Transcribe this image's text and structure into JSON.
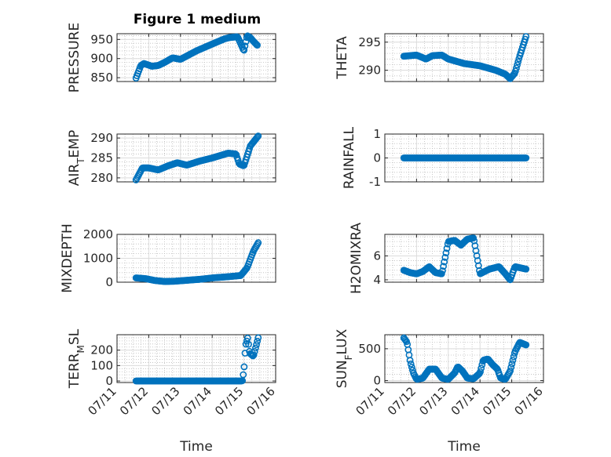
{
  "figure": {
    "title": "Figure 1 medium",
    "bg": "#ffffff",
    "marker_color": "#0072BD"
  },
  "chart_data": [
    {
      "type": "scatter",
      "marker": "circle",
      "ylabel": "PRESSURE",
      "title": "Figure 1 medium",
      "xlim": [
        "07/11",
        "07/16"
      ],
      "ylim": [
        840,
        965
      ],
      "yticks": [
        850,
        900,
        950
      ],
      "ytick_labels": [
        "850",
        "900",
        "950"
      ],
      "xticks": [],
      "xtick_labels": [],
      "xlabel": "",
      "anchors": [
        [
          11.6,
          849
        ],
        [
          11.75,
          882
        ],
        [
          11.85,
          887
        ],
        [
          12.1,
          880
        ],
        [
          12.3,
          882
        ],
        [
          12.5,
          890
        ],
        [
          12.75,
          902
        ],
        [
          13.0,
          898
        ],
        [
          13.5,
          920
        ],
        [
          14.0,
          938
        ],
        [
          14.4,
          952
        ],
        [
          14.55,
          955
        ],
        [
          14.8,
          957
        ],
        [
          14.92,
          935
        ],
        [
          15.0,
          920
        ],
        [
          15.1,
          960
        ],
        [
          15.2,
          955
        ],
        [
          15.3,
          945
        ],
        [
          15.42,
          935
        ]
      ]
    },
    {
      "type": "scatter",
      "marker": "circle",
      "ylabel": "THETA",
      "xlim": [
        "07/11",
        "07/16"
      ],
      "ylim": [
        288,
        296.5
      ],
      "yticks": [
        290,
        295
      ],
      "ytick_labels": [
        "290",
        "295"
      ],
      "xticks": [],
      "xtick_labels": [],
      "xlabel": "",
      "anchors": [
        [
          11.6,
          292.5
        ],
        [
          12.0,
          292.7
        ],
        [
          12.3,
          292.0
        ],
        [
          12.5,
          292.6
        ],
        [
          12.8,
          292.7
        ],
        [
          13.0,
          292.0
        ],
        [
          13.5,
          291.2
        ],
        [
          14.0,
          290.8
        ],
        [
          14.5,
          290.0
        ],
        [
          14.8,
          289.3
        ],
        [
          14.95,
          288.5
        ],
        [
          15.1,
          289.5
        ],
        [
          15.25,
          292.5
        ],
        [
          15.45,
          296.0
        ]
      ]
    },
    {
      "type": "scatter",
      "marker": "circle",
      "ylabel": "AIR_TEMP",
      "xlim": [
        "07/11",
        "07/16"
      ],
      "ylim": [
        279,
        291
      ],
      "yticks": [
        280,
        285,
        290
      ],
      "ytick_labels": [
        "280",
        "285",
        "290"
      ],
      "xticks": [],
      "xtick_labels": [],
      "xlabel": "",
      "anchors": [
        [
          11.6,
          279.5
        ],
        [
          11.8,
          282.5
        ],
        [
          12.0,
          282.5
        ],
        [
          12.3,
          282.0
        ],
        [
          12.6,
          283.0
        ],
        [
          12.9,
          283.8
        ],
        [
          13.2,
          283.2
        ],
        [
          13.6,
          284.2
        ],
        [
          14.0,
          285.0
        ],
        [
          14.5,
          286.2
        ],
        [
          14.75,
          286.0
        ],
        [
          14.85,
          283.5
        ],
        [
          15.0,
          283.0
        ],
        [
          15.2,
          288.0
        ],
        [
          15.45,
          290.5
        ]
      ]
    },
    {
      "type": "scatter",
      "marker": "circle",
      "ylabel": "RAINFALL",
      "xlim": [
        "07/11",
        "07/16"
      ],
      "ylim": [
        -1,
        1
      ],
      "yticks": [
        -1,
        0,
        1
      ],
      "ytick_labels": [
        "-1",
        "0",
        "1"
      ],
      "xticks": [],
      "xtick_labels": [],
      "xlabel": "",
      "anchors": [
        [
          11.6,
          0
        ],
        [
          15.45,
          0
        ]
      ]
    },
    {
      "type": "scatter",
      "marker": "circle",
      "ylabel": "MIXDEPTH",
      "xlim": [
        "07/11",
        "07/16"
      ],
      "ylim": [
        0,
        2000
      ],
      "yticks": [
        0,
        1000,
        2000
      ],
      "ytick_labels": [
        "0",
        "1000",
        "2000"
      ],
      "xticks": [],
      "xtick_labels": [],
      "xlabel": "",
      "anchors": [
        [
          11.6,
          180
        ],
        [
          11.9,
          150
        ],
        [
          12.2,
          70
        ],
        [
          12.5,
          30
        ],
        [
          12.8,
          40
        ],
        [
          13.2,
          80
        ],
        [
          13.6,
          120
        ],
        [
          14.0,
          180
        ],
        [
          14.5,
          230
        ],
        [
          14.9,
          280
        ],
        [
          15.1,
          600
        ],
        [
          15.3,
          1300
        ],
        [
          15.45,
          1650
        ]
      ]
    },
    {
      "type": "scatter",
      "marker": "circle",
      "ylabel": "H2OMIXRA",
      "xlim": [
        "07/11",
        "07/16"
      ],
      "ylim": [
        3.8,
        7.8
      ],
      "yticks": [
        4,
        6
      ],
      "ytick_labels": [
        "4",
        "6"
      ],
      "xticks": [],
      "xtick_labels": [],
      "xlabel": "",
      "anchors": [
        [
          11.6,
          4.8
        ],
        [
          11.8,
          4.6
        ],
        [
          12.0,
          4.5
        ],
        [
          12.2,
          4.7
        ],
        [
          12.4,
          5.1
        ],
        [
          12.6,
          4.6
        ],
        [
          12.8,
          4.5
        ],
        [
          13.0,
          7.2
        ],
        [
          13.2,
          7.3
        ],
        [
          13.4,
          6.9
        ],
        [
          13.6,
          7.4
        ],
        [
          13.8,
          7.5
        ],
        [
          14.0,
          4.5
        ],
        [
          14.3,
          4.9
        ],
        [
          14.6,
          5.1
        ],
        [
          14.8,
          4.5
        ],
        [
          14.95,
          4.0
        ],
        [
          15.1,
          5.1
        ],
        [
          15.45,
          4.9
        ]
      ]
    },
    {
      "type": "scatter",
      "marker": "circle",
      "ylabel": "TERR_MSL",
      "xlim": [
        "07/11",
        "07/16"
      ],
      "ylim": [
        -10,
        300
      ],
      "yticks": [
        0,
        100,
        200
      ],
      "ytick_labels": [
        "0",
        "100",
        "200"
      ],
      "xticks": [
        11,
        12,
        13,
        14,
        15,
        16
      ],
      "xtick_labels": [
        "07/11",
        "07/12",
        "07/13",
        "07/14",
        "07/15",
        "07/16"
      ],
      "xlabel": "Time",
      "anchors": [
        [
          11.6,
          0
        ],
        [
          14.95,
          0
        ],
        [
          15.0,
          70
        ],
        [
          15.05,
          230
        ],
        [
          15.12,
          280
        ],
        [
          15.18,
          180
        ],
        [
          15.3,
          160
        ],
        [
          15.45,
          280
        ]
      ]
    },
    {
      "type": "scatter",
      "marker": "circle",
      "ylabel": "SUN_FLUX",
      "xlim": [
        "07/11",
        "07/16"
      ],
      "ylim": [
        -30,
        720
      ],
      "yticks": [
        0,
        500
      ],
      "ytick_labels": [
        "0",
        "500"
      ],
      "xticks": [
        11,
        12,
        13,
        14,
        15,
        16
      ],
      "xtick_labels": [
        "07/11",
        "07/12",
        "07/13",
        "07/14",
        "07/15",
        "07/16"
      ],
      "xlabel": "Time",
      "anchors": [
        [
          11.6,
          670
        ],
        [
          11.7,
          600
        ],
        [
          11.8,
          300
        ],
        [
          11.9,
          120
        ],
        [
          12.0,
          20
        ],
        [
          12.2,
          40
        ],
        [
          12.4,
          180
        ],
        [
          12.6,
          180
        ],
        [
          12.8,
          40
        ],
        [
          13.0,
          20
        ],
        [
          13.2,
          120
        ],
        [
          13.3,
          220
        ],
        [
          13.45,
          150
        ],
        [
          13.6,
          40
        ],
        [
          13.8,
          30
        ],
        [
          14.0,
          120
        ],
        [
          14.1,
          320
        ],
        [
          14.25,
          340
        ],
        [
          14.4,
          250
        ],
        [
          14.55,
          180
        ],
        [
          14.65,
          40
        ],
        [
          14.8,
          20
        ],
        [
          14.95,
          150
        ],
        [
          15.1,
          450
        ],
        [
          15.25,
          600
        ],
        [
          15.45,
          560
        ]
      ]
    }
  ]
}
